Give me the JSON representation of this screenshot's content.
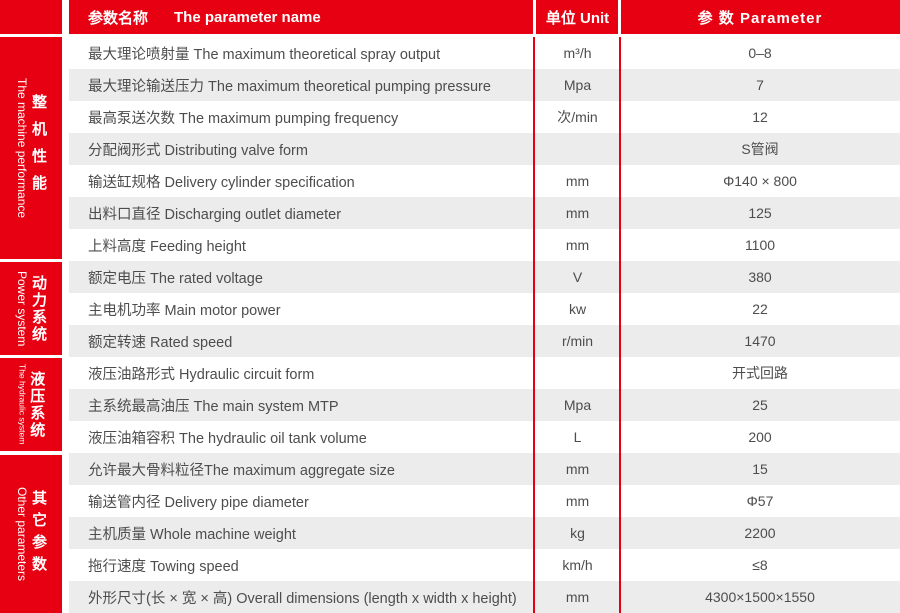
{
  "colors": {
    "brand_red": "#e60012",
    "row_stripe": "#ececec",
    "body_text": "#4d4d4d",
    "header_text": "#ffffff"
  },
  "header": {
    "name_cn": "参数名称",
    "name_en": "The parameter name",
    "unit": "单位 Unit",
    "value": "参 数 Parameter"
  },
  "sidebar": {
    "groups": [
      {
        "cn": "整机性能",
        "en": "The machine performance",
        "rows_spanned": 7
      },
      {
        "cn": "动力系统",
        "en": "Power system",
        "rows_spanned": 3
      },
      {
        "cn": "液压系统",
        "en": "The hydraulic system",
        "rows_spanned": 3
      },
      {
        "cn": "其它参数",
        "en": "Other parameters",
        "rows_spanned": 5
      }
    ]
  },
  "rows": [
    {
      "name": "最大理论喷射量 The maximum theoretical spray output",
      "unit": "m³/h",
      "value": "0–8"
    },
    {
      "name": "最大理论输送压力 The maximum theoretical pumping pressure",
      "unit": "Mpa",
      "value": "7"
    },
    {
      "name": "最高泵送次数 The maximum pumping frequency",
      "unit": "次/min",
      "value": "12"
    },
    {
      "name": "分配阀形式 Distributing valve form",
      "unit": "",
      "value": "S管阀"
    },
    {
      "name": "输送缸规格 Delivery cylinder specification",
      "unit": "mm",
      "value": "Φ140 × 800"
    },
    {
      "name": "出料口直径 Discharging outlet diameter",
      "unit": "mm",
      "value": "125"
    },
    {
      "name": "上料高度 Feeding height",
      "unit": "mm",
      "value": "1100"
    },
    {
      "name": "额定电压 The rated voltage",
      "unit": "V",
      "value": "380"
    },
    {
      "name": "主电机功率 Main motor power",
      "unit": "kw",
      "value": "22"
    },
    {
      "name": "额定转速 Rated speed",
      "unit": "r/min",
      "value": "1470"
    },
    {
      "name": "液压油路形式 Hydraulic circuit form",
      "unit": "",
      "value": "开式回路"
    },
    {
      "name": "主系统最高油压 The main system MTP",
      "unit": "Mpa",
      "value": "25"
    },
    {
      "name": "液压油箱容积 The hydraulic oil tank volume",
      "unit": "L",
      "value": "200"
    },
    {
      "name": "允许最大骨料粒径The maximum aggregate size",
      "unit": "mm",
      "value": "15"
    },
    {
      "name": "输送管内径 Delivery pipe diameter",
      "unit": "mm",
      "value": "Φ57"
    },
    {
      "name": "主机质量 Whole machine weight",
      "unit": "kg",
      "value": "2200"
    },
    {
      "name": "拖行速度 Towing speed",
      "unit": "km/h",
      "value": "≤8"
    },
    {
      "name": "外形尺寸(长 × 宽 × 高) Overall dimensions (length x width x height)",
      "unit": "mm",
      "value": "4300×1500×1550"
    }
  ]
}
